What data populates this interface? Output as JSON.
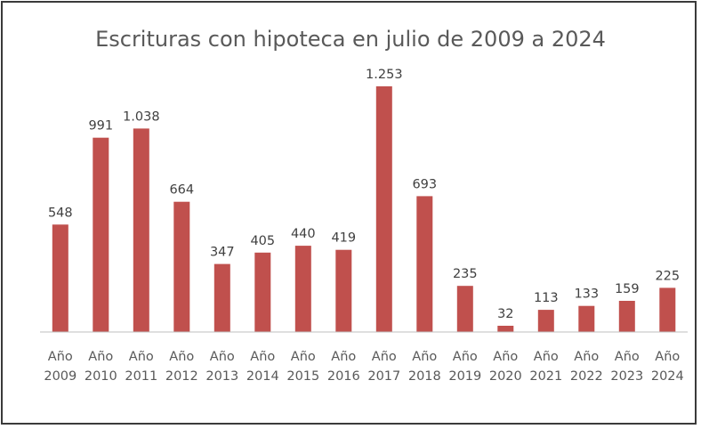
{
  "chart_data": {
    "type": "bar",
    "title": "Escrituras con hipoteca en julio de 2009 a 2024",
    "xlabel": "",
    "ylabel": "",
    "ylim": [
      0,
      1253
    ],
    "grid": false,
    "legend": "none",
    "categories": [
      [
        "Año",
        "2009"
      ],
      [
        "Año",
        "2010"
      ],
      [
        "Año",
        "2011"
      ],
      [
        "Año",
        "2012"
      ],
      [
        "Año",
        "2013"
      ],
      [
        "Año",
        "2014"
      ],
      [
        "Año",
        "2015"
      ],
      [
        "Año",
        "2016"
      ],
      [
        "Año",
        "2017"
      ],
      [
        "Año",
        "2018"
      ],
      [
        "Año",
        "2019"
      ],
      [
        "Año",
        "2020"
      ],
      [
        "Año",
        "2021"
      ],
      [
        "Año",
        "2022"
      ],
      [
        "Año",
        "2023"
      ],
      [
        "Año",
        "2024"
      ]
    ],
    "values": [
      548,
      991,
      1038,
      664,
      347,
      405,
      440,
      419,
      1253,
      693,
      235,
      32,
      113,
      133,
      159,
      225
    ],
    "value_labels": [
      "548",
      "991",
      "1.038",
      "664",
      "347",
      "405",
      "440",
      "419",
      "1.253",
      "693",
      "235",
      "32",
      "113",
      "133",
      "159",
      "225"
    ],
    "bar_color": "#c0504d",
    "axis_color": "#bfbfbf"
  }
}
